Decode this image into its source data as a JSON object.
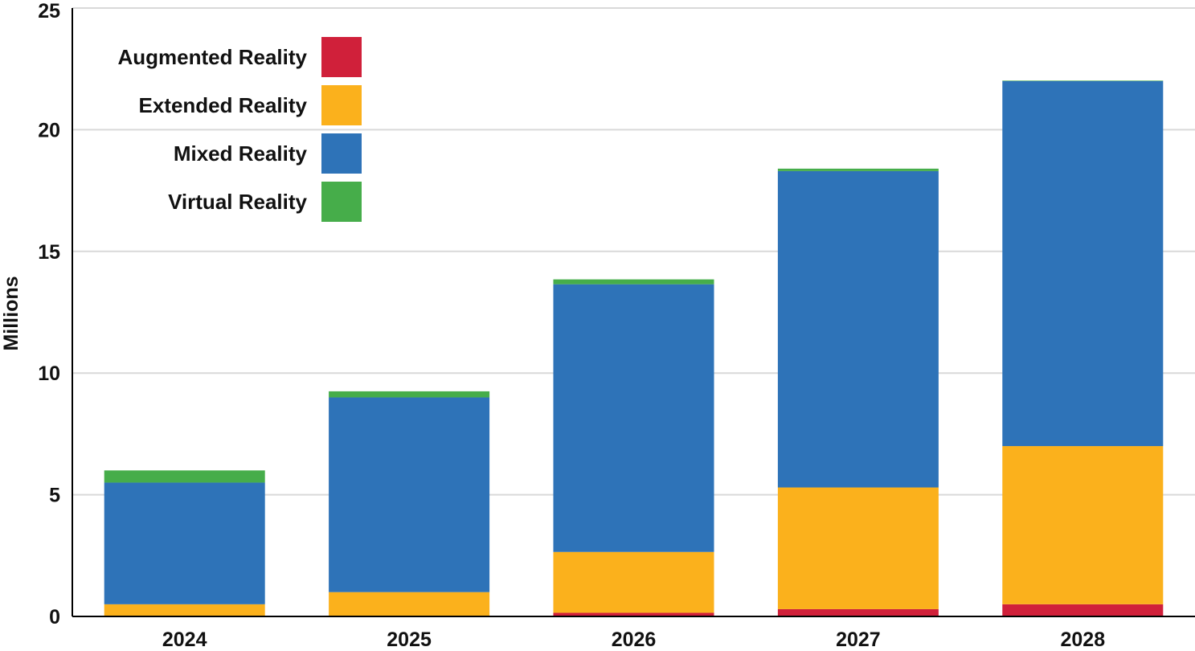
{
  "chart_data": {
    "type": "bar",
    "stacked": true,
    "title": "",
    "xlabel": "",
    "ylabel": "Millions",
    "ylim": [
      0,
      25
    ],
    "yticks": [
      0,
      5,
      10,
      15,
      20,
      25
    ],
    "grid": true,
    "legend_position": "top-left",
    "categories": [
      "2024",
      "2025",
      "2026",
      "2027",
      "2028"
    ],
    "series": [
      {
        "name": "Augmented Reality",
        "color": "#d0203a",
        "values": [
          0,
          0,
          0.15,
          0.3,
          0.5
        ]
      },
      {
        "name": "Extended Reality",
        "color": "#fbb11c",
        "values": [
          0.5,
          1.0,
          2.5,
          5.0,
          6.5
        ]
      },
      {
        "name": "Mixed Reality",
        "color": "#2e73b8",
        "values": [
          5.0,
          8.0,
          11.0,
          13.0,
          15.0
        ]
      },
      {
        "name": "Virtual Reality",
        "color": "#46ad4a",
        "values": [
          0.5,
          0.25,
          0.2,
          0.1,
          0.02
        ]
      }
    ],
    "legend_order": [
      "Augmented Reality",
      "Extended Reality",
      "Mixed Reality",
      "Virtual Reality"
    ],
    "colors": {
      "grid": "#d9d9d9",
      "axis": "#000000"
    }
  }
}
